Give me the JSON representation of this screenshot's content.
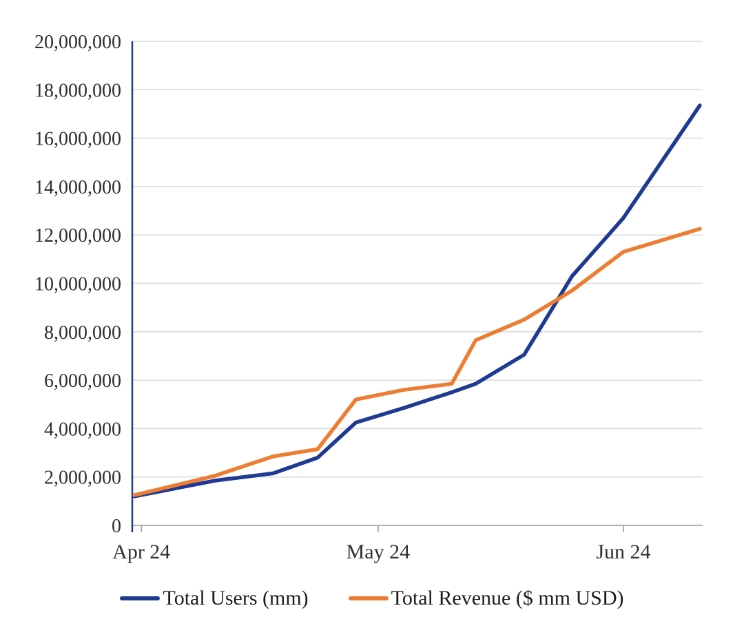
{
  "chart_data": {
    "type": "line",
    "title": "",
    "xlabel": "",
    "ylabel": "",
    "x_axis": {
      "tick_labels": [
        "Apr 24",
        "May 24",
        "Jun 24"
      ],
      "tick_positions": [
        0.016,
        0.431,
        0.861
      ]
    },
    "y_axis": {
      "min": 0,
      "max": 20000000,
      "tick_step": 2000000,
      "tick_labels": [
        "0",
        "2,000,000",
        "4,000,000",
        "6,000,000",
        "8,000,000",
        "10,000,000",
        "12,000,000",
        "14,000,000",
        "16,000,000",
        "18,000,000",
        "20,000,000"
      ]
    },
    "x_positions": [
      0.004,
      0.145,
      0.247,
      0.325,
      0.392,
      0.476,
      0.56,
      0.602,
      0.687,
      0.771,
      0.861,
      0.995
    ],
    "series": [
      {
        "name": "Total Users (mm)",
        "color": "#1F3A93",
        "values": [
          1200000,
          1850000,
          2150000,
          2800000,
          4250000,
          4850000,
          5500000,
          5850000,
          7050000,
          10300000,
          12700000,
          17350000
        ]
      },
      {
        "name": "Total Revenue ($ mm USD)",
        "color": "#ED7D31",
        "values": [
          1250000,
          2050000,
          2850000,
          3150000,
          5200000,
          5600000,
          5850000,
          7650000,
          8500000,
          9700000,
          11300000,
          12250000
        ]
      }
    ],
    "grid": "horizontal",
    "legend_position": "bottom",
    "colors": {
      "gridline": "#D9D9D9",
      "x_axis_line": "#A6A6A6",
      "y_axis_line": "#1F3A93",
      "tick_text": "#2F2F2F"
    }
  }
}
